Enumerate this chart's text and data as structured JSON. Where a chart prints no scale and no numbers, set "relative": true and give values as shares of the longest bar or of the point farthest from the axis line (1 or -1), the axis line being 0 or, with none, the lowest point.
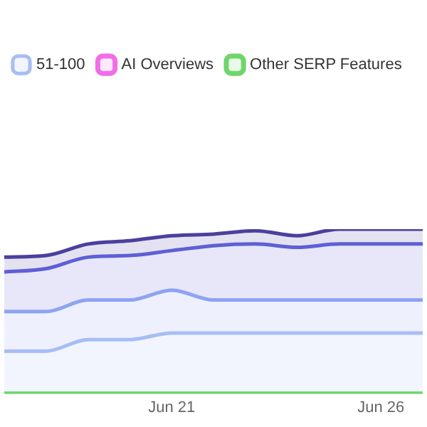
{
  "chart_data": {
    "type": "area",
    "relative": true,
    "legend": "top",
    "categories": [
      null,
      null,
      null,
      null,
      "Jun 21",
      null,
      null,
      null,
      null,
      "Jun 26",
      null
    ],
    "series": [
      {
        "name": "Other SERP Features",
        "type": "line",
        "color": "#6fd66b",
        "values": [
          0,
          0,
          0,
          0,
          0,
          0,
          0,
          0,
          0,
          0,
          0
        ]
      },
      {
        "name": "AI Overviews",
        "type": "line",
        "color": "#f06ee8",
        "values": [
          null,
          null,
          null,
          null,
          null,
          null,
          null,
          null,
          null,
          null,
          null
        ]
      },
      {
        "name": "51-100",
        "color": "#a8bdf5",
        "values": [
          0.26,
          0.26,
          0.33,
          0.33,
          0.37,
          0.37,
          0.37,
          0.37,
          0.37,
          0.37,
          0.37
        ]
      },
      {
        "color": "#8ea3f2",
        "values": [
          0.5,
          0.5,
          0.57,
          0.57,
          0.63,
          0.57,
          0.57,
          0.57,
          0.57,
          0.57,
          0.57
        ]
      },
      {
        "color": "#5f5fd6",
        "values": [
          0.74,
          0.76,
          0.83,
          0.84,
          0.87,
          0.9,
          0.91,
          0.89,
          0.91,
          0.91,
          0.91
        ]
      },
      {
        "color": "#4b3f9e",
        "values": [
          0.83,
          0.84,
          0.91,
          0.93,
          0.96,
          0.97,
          0.99,
          0.96,
          1,
          1,
          1
        ]
      }
    ]
  }
}
